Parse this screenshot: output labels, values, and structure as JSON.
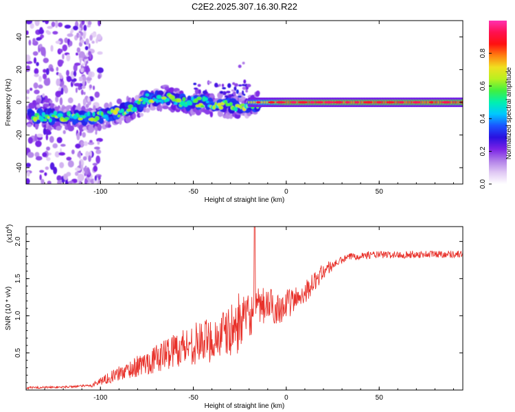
{
  "title": "C2E2.2025.307.16.30.R22",
  "chart_data": [
    {
      "type": "heatmap",
      "name": "spectrogram",
      "xlabel": "Height of straight line (km)",
      "ylabel": "Frequency (Hz)",
      "xlim": [
        -140,
        95
      ],
      "ylim": [
        -50,
        50
      ],
      "xticks": [
        -100,
        -50,
        0,
        50
      ],
      "yticks": [
        -40,
        -20,
        0,
        20,
        40
      ],
      "colorbar": {
        "label": "Normalized spectral amplitude",
        "range": [
          0,
          1
        ],
        "ticks": [
          "0.0",
          "0.2",
          "0.4",
          "0.6",
          "0.8"
        ],
        "colors": [
          "#ffffff",
          "#e0c8f4",
          "#b07ee8",
          "#7a22e6",
          "#2a10e0",
          "#1a55ff",
          "#00c8ff",
          "#00f0b0",
          "#40f040",
          "#b8f020",
          "#f0e020",
          "#ff8010",
          "#ff1010",
          "#ff1050",
          "#ff30b0"
        ]
      },
      "ridge": [
        [
          -140,
          -8
        ],
        [
          -120,
          -9
        ],
        [
          -100,
          -9
        ],
        [
          -90,
          -6
        ],
        [
          -80,
          -2
        ],
        [
          -75,
          2
        ],
        [
          -65,
          3
        ],
        [
          -55,
          0
        ],
        [
          -45,
          0
        ],
        [
          -35,
          -2
        ],
        [
          -25,
          -2
        ],
        [
          -20,
          -3
        ],
        [
          -15,
          -1
        ],
        [
          -5,
          0
        ],
        [
          0,
          0
        ],
        [
          50,
          0
        ],
        [
          95,
          0
        ]
      ]
    },
    {
      "type": "line",
      "name": "snr",
      "xlabel": "Height of straight line (km)",
      "ylabel": "SNR (10 * v/v)",
      "multiplier": "(x10",
      "multiplier_exp": "4",
      "multiplier_close": ")",
      "xlim": [
        -140,
        95
      ],
      "ylim": [
        0,
        2.2
      ],
      "xticks": [
        -100,
        -50,
        0,
        50
      ],
      "yticks": [
        0.5,
        1.0,
        1.5,
        2.0
      ],
      "ytick_labels": [
        "0.5",
        "1.0",
        "1.5",
        "2.0"
      ],
      "color": "#e8312a",
      "envelope": [
        [
          -140,
          0.03
        ],
        [
          -120,
          0.04
        ],
        [
          -105,
          0.06
        ],
        [
          -100,
          0.12
        ],
        [
          -90,
          0.22
        ],
        [
          -80,
          0.32
        ],
        [
          -70,
          0.42
        ],
        [
          -60,
          0.55
        ],
        [
          -50,
          0.62
        ],
        [
          -40,
          0.68
        ],
        [
          -30,
          0.78
        ],
        [
          -25,
          0.92
        ],
        [
          -20,
          1.0
        ],
        [
          -15,
          1.1
        ],
        [
          -10,
          1.15
        ],
        [
          -5,
          1.1
        ],
        [
          0,
          1.15
        ],
        [
          5,
          1.22
        ],
        [
          10,
          1.32
        ],
        [
          15,
          1.45
        ],
        [
          20,
          1.6
        ],
        [
          25,
          1.68
        ],
        [
          30,
          1.75
        ],
        [
          35,
          1.8
        ],
        [
          45,
          1.82
        ],
        [
          60,
          1.82
        ],
        [
          80,
          1.83
        ],
        [
          95,
          1.83
        ]
      ],
      "spike": {
        "x": -17,
        "y": 2.2
      }
    }
  ]
}
